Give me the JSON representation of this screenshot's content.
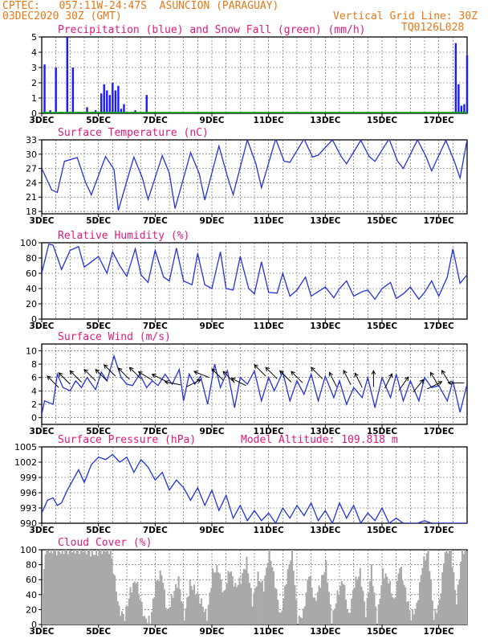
{
  "header": {
    "line1": "CPTEC:   057:11W-24:47S  ASUNCION (PARAGUAY)",
    "line2": "03DEC2020 30Z (GMT)",
    "vgrid": "Vertical Grid Line: 30Z",
    "code": "TQ0126L028"
  },
  "colors": {
    "title": "#e0197d",
    "header": "#e67817",
    "line": "#2233dd",
    "rain": "#1a1aff",
    "snow": "#00b000",
    "cloud": "#a9a9a9",
    "grid": "#555555"
  },
  "chart_data": [
    {
      "type": "bar",
      "title": "Precipitation (blue) and Snow Fall (green) (mm/h)",
      "x_ticks": [
        "3DEC",
        "5DEC",
        "7DEC",
        "9DEC",
        "11DEC",
        "13DEC",
        "15DEC",
        "17DEC"
      ],
      "y_ticks": [
        "0",
        "1",
        "2",
        "3",
        "4",
        "5"
      ],
      "ylim": [
        0,
        5
      ],
      "x_range_days": [
        0,
        15
      ],
      "series": [
        {
          "name": "Precipitation",
          "x_days": [
            0.1,
            0.3,
            0.5,
            0.7,
            0.9,
            1.1,
            1.3,
            1.6,
            1.8,
            1.9,
            2.1,
            2.2,
            2.3,
            2.4,
            2.5,
            2.6,
            2.7,
            2.8,
            2.9,
            3.3,
            3.7,
            14.6,
            14.7,
            14.8,
            14.9,
            15.0
          ],
          "values": [
            3.2,
            0.2,
            3.0,
            0.1,
            5.0,
            3.0,
            0.1,
            0.4,
            0.1,
            0.2,
            1.3,
            1.9,
            1.5,
            1.2,
            2.0,
            1.5,
            1.8,
            0.3,
            0.6,
            0.2,
            1.2,
            4.6,
            1.9,
            0.5,
            0.6,
            3.8
          ]
        },
        {
          "name": "Snow Fall",
          "x_days": [],
          "values": []
        }
      ]
    },
    {
      "type": "line",
      "title": "Surface Temperature (nC)",
      "x_ticks": [
        "3DEC",
        "5DEC",
        "7DEC",
        "9DEC",
        "11DEC",
        "13DEC",
        "15DEC",
        "17DEC"
      ],
      "y_ticks": [
        "18",
        "21",
        "24",
        "27",
        "30",
        "33"
      ],
      "ylim": [
        17.5,
        33
      ],
      "x_range_days": [
        0,
        15
      ],
      "series": [
        {
          "name": "Surface Temperature",
          "x_days": [
            0.0,
            0.35,
            0.55,
            0.8,
            1.25,
            1.55,
            1.75,
            2.25,
            2.55,
            2.7,
            3.25,
            3.55,
            3.75,
            4.25,
            4.5,
            4.7,
            5.25,
            5.55,
            5.75,
            6.25,
            6.55,
            6.75,
            7.25,
            7.55,
            7.75,
            8.25,
            8.55,
            8.75,
            9.25,
            9.55,
            9.75,
            10.25,
            10.55,
            10.75,
            11.25,
            11.55,
            11.75,
            12.25,
            12.55,
            12.75,
            13.25,
            13.55,
            13.75,
            14.25,
            14.55,
            14.75,
            15.0
          ],
          "values": [
            27,
            22.5,
            22.0,
            28.5,
            29.3,
            24.0,
            21.5,
            29.5,
            26.8,
            18.2,
            29.4,
            25.0,
            20.5,
            29.7,
            26.0,
            18.6,
            30.3,
            26.0,
            20.4,
            31.7,
            25.3,
            21.5,
            33.0,
            28.0,
            23.0,
            33.2,
            28.5,
            28.3,
            33.2,
            29.4,
            29.8,
            33.0,
            29.6,
            28.0,
            32.9,
            29.5,
            28.5,
            33.2,
            28.5,
            27.0,
            33.0,
            29.5,
            26.5,
            32.9,
            28.5,
            25.0,
            33.0
          ]
        }
      ]
    },
    {
      "type": "line",
      "title": "Relative Humidity (%)",
      "x_ticks": [
        "3DEC",
        "5DEC",
        "7DEC",
        "9DEC",
        "11DEC",
        "13DEC",
        "15DEC",
        "17DEC"
      ],
      "y_ticks": [
        "0",
        "20",
        "40",
        "60",
        "80",
        "100"
      ],
      "ylim": [
        0,
        100
      ],
      "x_range_days": [
        0,
        15
      ],
      "series": [
        {
          "name": "Relative Humidity",
          "x_days": [
            0.0,
            0.25,
            0.4,
            0.7,
            1.0,
            1.3,
            1.5,
            1.75,
            2.0,
            2.3,
            2.5,
            2.75,
            3.0,
            3.3,
            3.5,
            3.75,
            4.0,
            4.3,
            4.5,
            4.75,
            5.0,
            5.3,
            5.5,
            5.75,
            6.0,
            6.3,
            6.5,
            6.75,
            7.0,
            7.3,
            7.5,
            7.75,
            8.0,
            8.3,
            8.5,
            8.75,
            9.0,
            9.3,
            9.5,
            9.75,
            10.0,
            10.3,
            10.5,
            10.75,
            11.0,
            11.3,
            11.5,
            11.75,
            12.0,
            12.3,
            12.5,
            12.75,
            13.0,
            13.3,
            13.5,
            13.75,
            14.0,
            14.3,
            14.5,
            14.75,
            15.0
          ],
          "values": [
            60,
            98,
            97,
            65,
            90,
            95,
            68,
            75,
            82,
            60,
            88,
            70,
            56,
            92,
            58,
            48,
            90,
            55,
            50,
            93,
            50,
            45,
            86,
            45,
            40,
            88,
            40,
            38,
            82,
            40,
            33,
            75,
            35,
            34,
            60,
            30,
            38,
            55,
            30,
            36,
            42,
            28,
            40,
            50,
            30,
            36,
            38,
            26,
            40,
            48,
            27,
            33,
            42,
            26,
            35,
            50,
            30,
            55,
            92,
            47,
            58
          ]
        }
      ]
    },
    {
      "type": "line",
      "title": "Surface Wind (m/s)",
      "x_ticks": [
        "3DEC",
        "5DEC",
        "7DEC",
        "9DEC",
        "11DEC",
        "13DEC",
        "15DEC",
        "17DEC"
      ],
      "y_ticks": [
        "0",
        "2",
        "4",
        "6",
        "8",
        "10"
      ],
      "ylim": [
        -1,
        11
      ],
      "x_range_days": [
        0,
        15
      ],
      "series": [
        {
          "name": "Surface Wind",
          "x_days": [
            0.0,
            0.1,
            0.4,
            0.55,
            0.75,
            1.0,
            1.2,
            1.4,
            1.6,
            1.9,
            2.1,
            2.3,
            2.55,
            2.8,
            3.0,
            3.2,
            3.45,
            3.7,
            3.9,
            4.1,
            4.35,
            4.6,
            4.85,
            5.0,
            5.2,
            5.4,
            5.6,
            5.85,
            6.1,
            6.3,
            6.55,
            6.8,
            7.0,
            7.25,
            7.5,
            7.75,
            8.0,
            8.2,
            8.5,
            8.75,
            9.0,
            9.25,
            9.5,
            9.75,
            10.0,
            10.3,
            10.5,
            10.75,
            11.0,
            11.3,
            11.5,
            11.75,
            12.0,
            12.3,
            12.5,
            12.75,
            13.0,
            13.3,
            13.5,
            13.75,
            14.0,
            14.3,
            14.5,
            14.75,
            15.0
          ],
          "values": [
            0.5,
            2.5,
            2.0,
            6.5,
            4.5,
            4.0,
            5.5,
            4.5,
            6.0,
            4.2,
            6.8,
            5.5,
            9.2,
            6.0,
            5.0,
            4.8,
            6.5,
            4.5,
            5.5,
            4.8,
            6.5,
            5.0,
            7.2,
            2.5,
            6.5,
            5.0,
            6.2,
            2.0,
            8.0,
            4.5,
            7.0,
            1.5,
            6.0,
            5.0,
            7.0,
            2.5,
            6.0,
            4.0,
            6.8,
            2.5,
            5.5,
            3.5,
            6.5,
            2.5,
            6.2,
            3.0,
            5.5,
            2.0,
            4.5,
            3.0,
            6.0,
            1.5,
            6.0,
            3.0,
            6.5,
            2.5,
            5.5,
            2.5,
            6.0,
            4.5,
            4.8,
            2.5,
            5.5,
            0.8,
            5.0
          ]
        }
      ]
    },
    {
      "type": "line",
      "title": "Surface Pressure (hPa)",
      "subtitle": "Model Altitude: 109.818 m",
      "x_ticks": [
        "3DEC",
        "5DEC",
        "7DEC",
        "9DEC",
        "11DEC",
        "13DEC",
        "15DEC",
        "17DEC"
      ],
      "y_ticks": [
        "990",
        "993",
        "996",
        "999",
        "1002",
        "1005"
      ],
      "ylim": [
        990,
        1005
      ],
      "x_range_days": [
        0,
        15
      ],
      "series": [
        {
          "name": "Surface Pressure",
          "x_days": [
            0.0,
            0.2,
            0.4,
            0.55,
            0.7,
            0.9,
            1.1,
            1.3,
            1.5,
            1.75,
            2.0,
            2.25,
            2.5,
            2.75,
            3.0,
            3.25,
            3.5,
            3.75,
            4.0,
            4.25,
            4.5,
            4.75,
            5.0,
            5.25,
            5.5,
            5.75,
            6.0,
            6.25,
            6.5,
            6.75,
            7.0,
            7.25,
            7.5,
            7.75,
            8.0,
            8.25,
            8.5,
            8.75,
            9.0,
            9.25,
            9.5,
            9.75,
            10.0,
            10.25,
            10.5,
            10.75,
            11.0,
            11.25,
            11.5,
            11.75,
            12.0,
            12.25,
            12.5,
            12.75,
            13.0,
            13.25,
            13.5,
            13.75,
            14.0,
            14.25,
            14.5,
            14.75,
            15.0
          ],
          "values": [
            992.0,
            994.5,
            995.0,
            993.5,
            994.0,
            996.5,
            998.5,
            1000.5,
            998.0,
            1001.5,
            1003.0,
            1002.5,
            1003.5,
            1002.0,
            1003.0,
            1000.0,
            1002.5,
            1001.0,
            998.5,
            1000.0,
            996.5,
            998.5,
            997.0,
            994.5,
            997.0,
            993.5,
            996.5,
            992.5,
            995.5,
            991.0,
            993.5,
            990.5,
            992.5,
            990.5,
            992.0,
            990.0,
            993.0,
            991.0,
            993.5,
            991.5,
            994.0,
            990.5,
            992.5,
            990.0,
            994.0,
            991.0,
            993.5,
            990.0,
            992.0,
            990.5,
            993.0,
            990.0,
            991.0,
            990.0,
            990.0,
            990.0,
            990.5,
            990.0,
            990.0,
            990.0,
            990.0,
            990.0,
            990.0
          ]
        }
      ]
    },
    {
      "type": "area",
      "title": "Cloud Cover (%)",
      "x_ticks": [
        "3DEC",
        "5DEC",
        "7DEC",
        "9DEC",
        "11DEC",
        "13DEC",
        "15DEC",
        "17DEC"
      ],
      "y_ticks": [
        "0",
        "20",
        "40",
        "60",
        "80",
        "100"
      ],
      "ylim": [
        0,
        100
      ],
      "x_range_days": [
        0,
        15
      ],
      "series": [
        {
          "name": "Cloud Cover",
          "x_days": [
            0.0,
            0.1,
            0.3,
            0.6,
            0.9,
            1.2,
            1.5,
            1.8,
            2.1,
            2.4,
            2.7,
            2.9,
            3.1,
            3.3,
            3.6,
            3.8,
            4.0,
            4.2,
            4.4,
            4.6,
            4.8,
            5.0,
            5.2,
            5.4,
            5.6,
            5.8,
            6.0,
            6.2,
            6.4,
            6.6,
            6.8,
            7.0,
            7.2,
            7.4,
            7.6,
            7.8,
            8.0,
            8.2,
            8.4,
            8.6,
            8.8,
            9.0,
            9.2,
            9.4,
            9.6,
            9.8,
            10.0,
            10.2,
            10.4,
            10.6,
            10.8,
            11.0,
            11.2,
            11.4,
            11.6,
            11.8,
            12.0,
            12.2,
            12.4,
            12.6,
            12.8,
            13.0,
            13.2,
            13.4,
            13.6,
            13.8,
            14.0,
            14.2,
            14.4,
            14.6,
            14.8,
            15.0
          ],
          "values": [
            40,
            100,
            100,
            98,
            100,
            100,
            100,
            95,
            100,
            100,
            20,
            10,
            45,
            60,
            8,
            5,
            55,
            70,
            15,
            40,
            60,
            10,
            55,
            45,
            30,
            10,
            70,
            75,
            40,
            75,
            50,
            60,
            85,
            30,
            65,
            50,
            100,
            55,
            10,
            60,
            100,
            5,
            15,
            70,
            30,
            55,
            80,
            5,
            40,
            60,
            10,
            55,
            70,
            15,
            75,
            5,
            70,
            60,
            30,
            80,
            45,
            10,
            25,
            80,
            100,
            10,
            30,
            100,
            100,
            30,
            100,
            100
          ]
        }
      ]
    }
  ]
}
